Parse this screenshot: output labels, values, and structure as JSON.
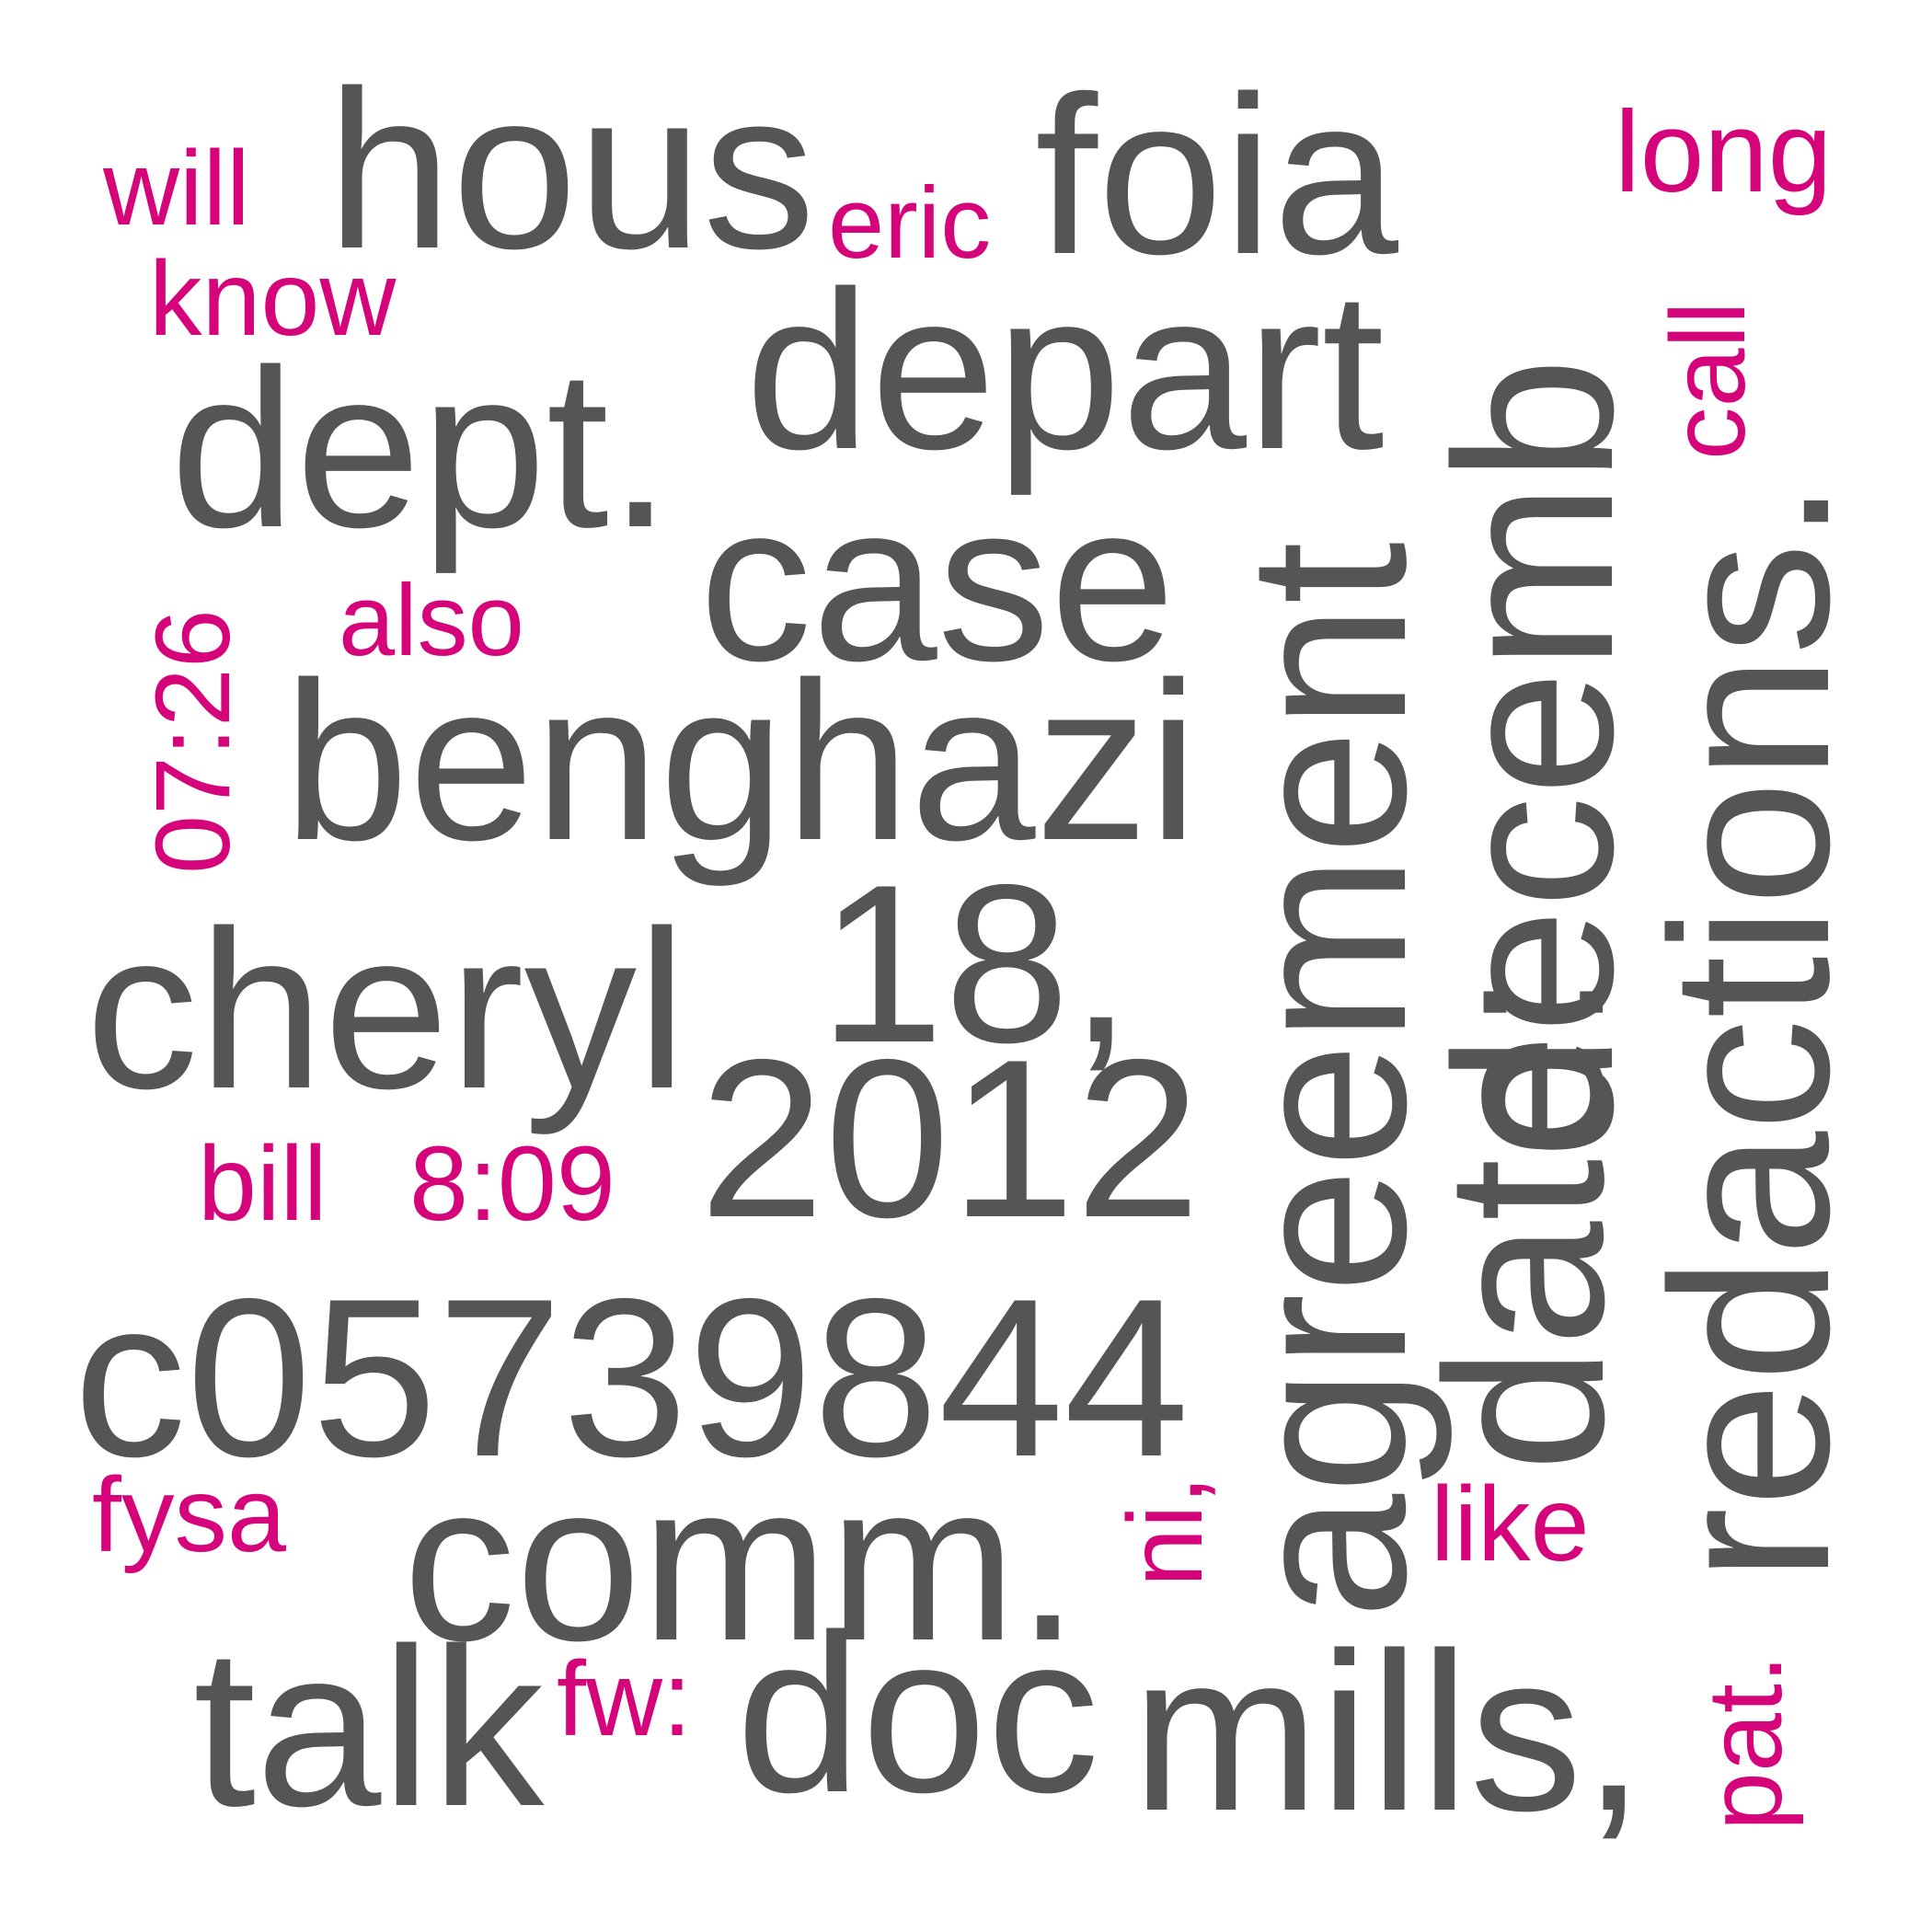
{
  "colors": {
    "primary": "#555555",
    "accent": "#d6047a",
    "background": "#ffffff"
  },
  "words": {
    "hous": "hous",
    "eric": "eric",
    "foia": "foia",
    "will": "will",
    "long": "long",
    "know": "know",
    "depart": "depart",
    "dept": "dept.",
    "call": "call",
    "decemb": "decemb",
    "case": "case",
    "also": "also",
    "time_0726": "07:26",
    "benghazi": "benghazi",
    "agreement": "agreement",
    "date": "date:",
    "redactions": "redactions.",
    "cheryl": "cheryl",
    "eighteen": "18,",
    "year_2012": "2012",
    "bill": "bill",
    "time_809": "8:09",
    "doc_id": "c05739844",
    "fysa": "fysa",
    "comm": "comm.",
    "ni": "ni,",
    "like": "like",
    "talk": "talk",
    "fw": "fw:",
    "doc": "doc",
    "mills": "mills,",
    "pat": "pat."
  }
}
